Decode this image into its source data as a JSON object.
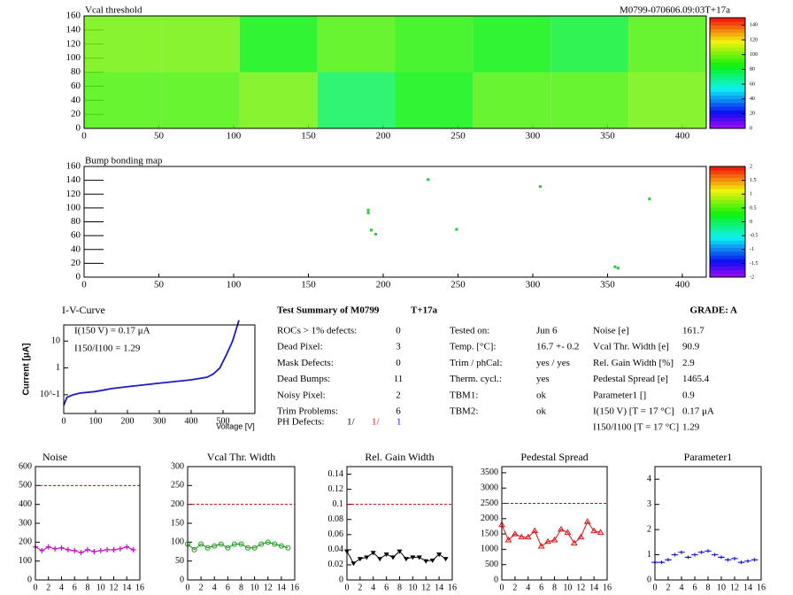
{
  "chart_data": [
    {
      "type": "heatmap",
      "title": "Vcal threshold",
      "subtitle": "M0799-070606.09:03T+17a",
      "colormap": "rainbow",
      "x_edges": [
        0,
        52,
        104,
        156,
        208,
        260,
        312,
        364,
        416
      ],
      "y_edges": [
        0,
        80,
        160
      ],
      "z": [
        [
          95,
          95,
          100,
          75,
          85,
          95,
          95,
          100
        ],
        [
          100,
          100,
          85,
          95,
          90,
          85,
          80,
          95
        ]
      ],
      "xlim": [
        0,
        416
      ],
      "ylim": [
        0,
        160
      ],
      "xticks": [
        0,
        50,
        100,
        150,
        200,
        250,
        300,
        350,
        400
      ],
      "yticks": [
        0,
        20,
        40,
        60,
        80,
        100,
        120,
        140,
        160
      ],
      "zlim": [
        0,
        150
      ],
      "zticks": [
        0,
        20,
        40,
        60,
        80,
        100,
        120,
        140
      ]
    },
    {
      "type": "scatter",
      "title": "Bump bonding map",
      "color": "#22cc33",
      "x": [
        190,
        190,
        192,
        195,
        230,
        249,
        305,
        355,
        357,
        378
      ],
      "y": [
        97,
        93,
        68,
        62,
        141,
        69,
        131,
        15,
        13,
        113
      ],
      "xlim": [
        0,
        416
      ],
      "ylim": [
        0,
        160
      ],
      "xticks": [
        0,
        50,
        100,
        150,
        200,
        250,
        300,
        350,
        400
      ],
      "yticks": [
        0,
        20,
        40,
        60,
        80,
        100,
        120,
        140,
        160
      ],
      "colormap": "rainbow",
      "zlim": [
        -2,
        2
      ],
      "zticks": [
        -2,
        -1.5,
        -1,
        -0.5,
        0,
        0.5,
        1,
        1.5,
        2
      ]
    },
    {
      "type": "line",
      "title": "I-V-Curve",
      "x_label": "Voltage [V]",
      "y_label": "Current [μA]",
      "log_y": true,
      "annotations": [
        "I(150 V) = 0.17 μA",
        "I150/I100 =  1.29"
      ],
      "x": [
        0,
        10,
        30,
        50,
        100,
        150,
        200,
        300,
        400,
        450,
        470,
        490,
        510,
        530,
        550
      ],
      "series": [
        {
          "color": "#1a1acc",
          "values": [
            0.04,
            0.08,
            0.1,
            0.115,
            0.132,
            0.17,
            0.2,
            0.27,
            0.36,
            0.45,
            0.6,
            1.0,
            3,
            10,
            60
          ]
        }
      ],
      "xlim": [
        0,
        600
      ],
      "ylim": [
        0.02,
        40
      ],
      "xticks": [
        0,
        100,
        200,
        300,
        400,
        500
      ],
      "yticks": [
        {
          "value": 0.1,
          "label": "10^-1"
        },
        1,
        10
      ]
    },
    {
      "type": "line",
      "title": "Noise",
      "marker": "plus",
      "connect": true,
      "limit": 500,
      "x": [
        0,
        1,
        2,
        3,
        4,
        5,
        6,
        7,
        8,
        9,
        10,
        11,
        12,
        13,
        14,
        15
      ],
      "series": [
        {
          "color": "#cc00cc",
          "values": [
            175,
            155,
            175,
            165,
            170,
            160,
            155,
            145,
            160,
            150,
            155,
            160,
            160,
            165,
            175,
            160
          ]
        }
      ],
      "xlim": [
        0,
        16
      ],
      "ylim": [
        0,
        600
      ],
      "xticks": [
        0,
        2,
        4,
        6,
        8,
        10,
        12,
        14,
        16
      ],
      "yticks": [
        0,
        100,
        200,
        300,
        400,
        500,
        600
      ]
    },
    {
      "type": "line",
      "title": "Vcal Thr. Width",
      "marker": "circle",
      "connect": true,
      "limit": 200,
      "x": [
        0,
        1,
        2,
        3,
        4,
        5,
        6,
        7,
        8,
        9,
        10,
        11,
        12,
        13,
        14,
        15
      ],
      "series": [
        {
          "color": "#119911",
          "values": [
            95,
            80,
            95,
            85,
            90,
            95,
            85,
            95,
            95,
            85,
            85,
            95,
            100,
            95,
            90,
            85
          ]
        }
      ],
      "xlim": [
        0,
        16
      ],
      "ylim": [
        0,
        300
      ],
      "xticks": [
        0,
        2,
        4,
        6,
        8,
        10,
        12,
        14,
        16
      ],
      "yticks": [
        0,
        50,
        100,
        150,
        200,
        250,
        300
      ]
    },
    {
      "type": "line",
      "title": "Rel. Gain Width",
      "marker": "triangle-down",
      "connect": true,
      "limit": 0.1,
      "x": [
        0,
        1,
        2,
        3,
        4,
        5,
        6,
        7,
        8,
        9,
        10,
        11,
        12,
        13,
        14,
        15
      ],
      "series": [
        {
          "color": "#000000",
          "values": [
            0.038,
            0.022,
            0.028,
            0.03,
            0.036,
            0.028,
            0.034,
            0.03,
            0.038,
            0.028,
            0.03,
            0.03,
            0.025,
            0.026,
            0.034,
            0.028
          ]
        }
      ],
      "xlim": [
        0,
        16
      ],
      "ylim": [
        0,
        0.15
      ],
      "xticks": [
        0,
        2,
        4,
        6,
        8,
        10,
        12,
        14,
        16
      ],
      "yticks": [
        0,
        0.02,
        0.04,
        0.06,
        0.08,
        0.1,
        0.12,
        0.14
      ]
    },
    {
      "type": "line",
      "title": "Pedestal Spread",
      "marker": "triangle-up",
      "connect": true,
      "limit": 2500,
      "x": [
        0,
        1,
        2,
        3,
        4,
        5,
        6,
        7,
        8,
        9,
        10,
        11,
        12,
        13,
        14,
        15
      ],
      "series": [
        {
          "color": "#dd1111",
          "values": [
            1800,
            1300,
            1500,
            1400,
            1400,
            1600,
            1100,
            1250,
            1300,
            1650,
            1550,
            1200,
            1400,
            1900,
            1600,
            1550
          ]
        }
      ],
      "xlim": [
        0,
        16
      ],
      "ylim": [
        0,
        3700
      ],
      "xticks": [
        0,
        2,
        4,
        6,
        8,
        10,
        12,
        14,
        16
      ],
      "yticks": [
        0,
        500,
        1000,
        1500,
        2000,
        2500,
        3000,
        3500
      ]
    },
    {
      "type": "line",
      "title": "Parameter1",
      "marker": "hbar",
      "connect": false,
      "x": [
        0,
        1,
        2,
        3,
        4,
        5,
        6,
        7,
        8,
        9,
        10,
        11,
        12,
        13,
        14,
        15
      ],
      "series": [
        {
          "color": "#1a1acc",
          "values": [
            0.7,
            0.7,
            0.8,
            1.0,
            1.1,
            0.9,
            1.0,
            1.1,
            1.15,
            1.0,
            0.9,
            0.8,
            0.85,
            0.7,
            0.75,
            0.8
          ]
        }
      ],
      "xlim": [
        0,
        16
      ],
      "ylim": [
        0,
        4.5
      ],
      "xticks": [
        0,
        2,
        4,
        6,
        8,
        10,
        12,
        14,
        16
      ],
      "yticks": [
        0,
        1,
        2,
        3,
        4
      ]
    }
  ],
  "summary": {
    "title": "Test Summary of M0799",
    "tag": "T+17a",
    "grade": "GRADE:  A",
    "col1": [
      [
        "ROCs > 1% defects:",
        0
      ],
      [
        "Dead Pixel:",
        3
      ],
      [
        "Mask Defects:",
        0
      ],
      [
        "Dead Bumps:",
        11
      ],
      [
        "Noisy Pixel:",
        2
      ],
      [
        "Trim Problems:",
        6
      ]
    ],
    "ph_label": "PH Defects:",
    "ph_parts": [
      {
        "text": "1/",
        "color": "#000000"
      },
      {
        "text": "1/",
        "color": "#dd1111"
      },
      {
        "text": "1",
        "color": "#1a1acc"
      }
    ],
    "col2": [
      [
        "Tested on:",
        "Jun 6"
      ],
      [
        "Temp. [°C]:",
        "16.7 +- 0.2"
      ],
      [
        "Trim / phCal:",
        "yes / yes"
      ],
      [
        "Therm. cycl.:",
        "yes"
      ],
      [
        "TBM1:",
        "ok"
      ],
      [
        "TBM2:",
        "ok"
      ]
    ],
    "col3": [
      [
        "Noise [e]",
        161.7
      ],
      [
        "Vcal Thr. Width [e]",
        90.9
      ],
      [
        "Rel. Gain Width [%]",
        2.9
      ],
      [
        "Pedestal Spread [e]",
        1465.4
      ],
      [
        "Parameter1 []",
        0.9
      ],
      [
        "I(150 V) [T = 17 °C]",
        "0.17 μA"
      ],
      [
        "I150/I100  [T = 17 °C]",
        1.29
      ]
    ]
  }
}
